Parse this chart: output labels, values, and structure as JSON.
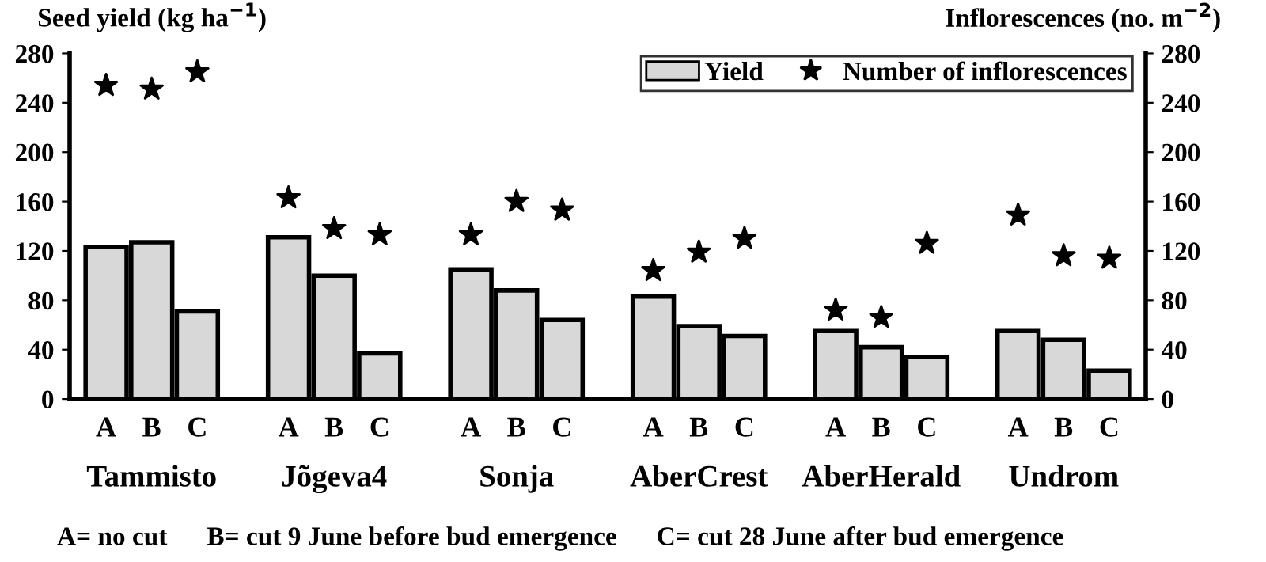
{
  "chart_data": {
    "type": "bar",
    "categories": [
      "A",
      "B",
      "C",
      "A",
      "B",
      "C",
      "A",
      "B",
      "C",
      "A",
      "B",
      "C",
      "A",
      "B",
      "C",
      "A",
      "B",
      "C"
    ],
    "series": [
      {
        "name": "Yield",
        "color": "#d8d8d8",
        "values": [
          123,
          127,
          71,
          131,
          100,
          37,
          105,
          88,
          64,
          83,
          59,
          51,
          55,
          42,
          34,
          55,
          48,
          23
        ]
      },
      {
        "name": "Number of inflorescences",
        "type": "scatter",
        "axis": "y2",
        "color": "#000000",
        "marker": "star",
        "values": [
          254,
          251,
          265,
          163,
          138,
          133,
          133,
          160,
          153,
          104,
          119,
          130,
          72,
          66,
          126,
          149,
          116,
          114
        ]
      }
    ],
    "ylabel": "Seed yield (kg ha$^{−1}$)",
    "y2label": "Inflorescences (no. m$^{−2}$)",
    "ylim": [
      0,
      280
    ],
    "yticks": [
      0,
      40,
      80,
      120,
      160,
      200,
      240,
      280
    ],
    "y2lim": [
      0,
      280
    ],
    "y2ticks": [
      0,
      40,
      80,
      120,
      160,
      200,
      240,
      280
    ],
    "legend": "top right",
    "grid": false,
    "annotations": [
      "Tammisto",
      "Jõgeva4",
      "Sonja",
      "AberCrest",
      "AberHerald",
      "Undrom",
      "A= no cut      B= cut 9 June before bud emergence      C= cut 28 June after bud emergence"
    ]
  }
}
